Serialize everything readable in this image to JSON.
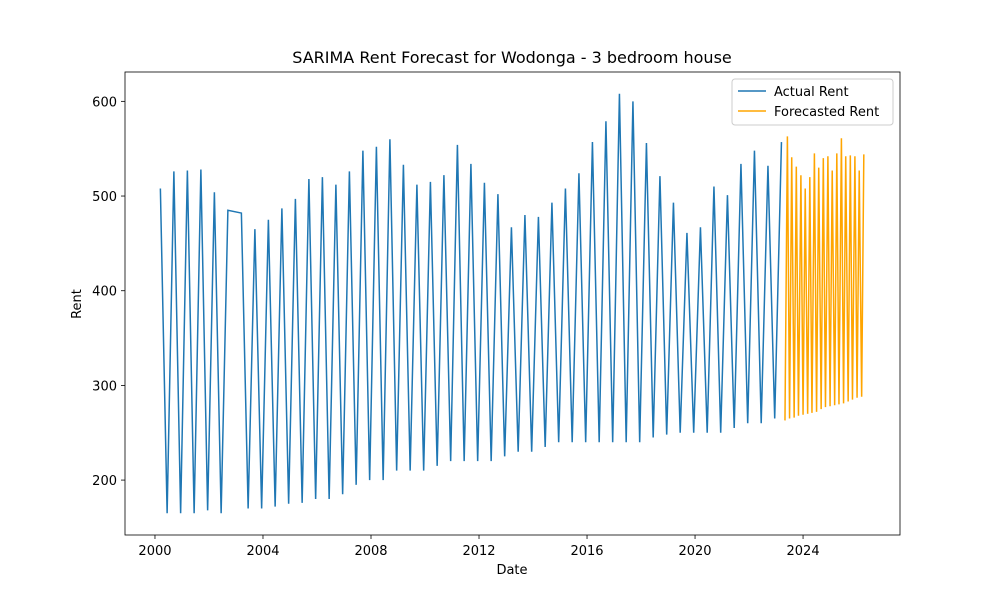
{
  "chart_data": {
    "type": "line",
    "title": "SARIMA Rent Forecast for Wodonga - 3 bedroom house",
    "x_label": "Date",
    "y_label": "Rent",
    "xlim": [
      1998.89,
      2027.59
    ],
    "xticks": [
      2000,
      2004,
      2008,
      2012,
      2016,
      2020,
      2024
    ],
    "ylim": [
      142,
      631
    ],
    "yticks": [
      200,
      300,
      400,
      500,
      600
    ],
    "legend": "upper right",
    "series": [
      {
        "name": "Actual Rent",
        "color": "#1f77b4",
        "x": [
          2000.2,
          2000.45,
          2000.7,
          2000.95,
          2001.2,
          2001.45,
          2001.7,
          2001.95,
          2002.2,
          2002.45,
          2002.7,
          2003.2,
          2003.45,
          2003.7,
          2003.95,
          2004.2,
          2004.45,
          2004.7,
          2004.95,
          2005.2,
          2005.45,
          2005.7,
          2005.95,
          2006.2,
          2006.45,
          2006.7,
          2006.95,
          2007.2,
          2007.45,
          2007.7,
          2007.95,
          2008.2,
          2008.45,
          2008.7,
          2008.95,
          2009.2,
          2009.45,
          2009.7,
          2009.95,
          2010.2,
          2010.45,
          2010.7,
          2010.95,
          2011.2,
          2011.45,
          2011.7,
          2011.95,
          2012.2,
          2012.45,
          2012.7,
          2012.95,
          2013.2,
          2013.45,
          2013.7,
          2013.95,
          2014.2,
          2014.45,
          2014.7,
          2014.95,
          2015.2,
          2015.45,
          2015.7,
          2015.95,
          2016.2,
          2016.45,
          2016.7,
          2016.95,
          2017.2,
          2017.45,
          2017.7,
          2017.95,
          2018.2,
          2018.45,
          2018.7,
          2018.95,
          2019.2,
          2019.45,
          2019.7,
          2019.95,
          2020.2,
          2020.45,
          2020.7,
          2020.95,
          2021.2,
          2021.45,
          2021.7,
          2021.95,
          2022.2,
          2022.45,
          2022.7,
          2022.95,
          2023.2
        ],
        "values": [
          508,
          165,
          526,
          165,
          527,
          165,
          528,
          168,
          504,
          165,
          485,
          482,
          170,
          465,
          170,
          475,
          172,
          487,
          175,
          497,
          176,
          518,
          180,
          520,
          180,
          512,
          185,
          526,
          195,
          548,
          200,
          552,
          200,
          560,
          210,
          533,
          210,
          512,
          210,
          515,
          215,
          522,
          220,
          554,
          220,
          534,
          220,
          514,
          220,
          502,
          225,
          467,
          230,
          480,
          230,
          478,
          235,
          493,
          240,
          508,
          240,
          524,
          240,
          557,
          240,
          579,
          240,
          608,
          240,
          600,
          240,
          556,
          245,
          521,
          248,
          493,
          250,
          461,
          250,
          467,
          250,
          510,
          250,
          501,
          255,
          534,
          260,
          548,
          260,
          532,
          265,
          557
        ]
      },
      {
        "name": "Forecasted Rent",
        "color": "#ffa500",
        "x": [
          2023.33,
          2023.42,
          2023.5,
          2023.58,
          2023.67,
          2023.75,
          2023.83,
          2023.92,
          2024.0,
          2024.08,
          2024.17,
          2024.25,
          2024.33,
          2024.42,
          2024.5,
          2024.58,
          2024.67,
          2024.75,
          2024.83,
          2024.92,
          2025.0,
          2025.08,
          2025.17,
          2025.25,
          2025.33,
          2025.42,
          2025.5,
          2025.58,
          2025.67,
          2025.75,
          2025.83,
          2025.92,
          2026.0,
          2026.08,
          2026.17,
          2026.25
        ],
        "values": [
          263,
          563,
          265,
          541,
          266,
          531,
          268,
          522,
          269,
          508,
          270,
          520,
          271,
          545,
          272,
          530,
          275,
          540,
          277,
          542,
          278,
          527,
          279,
          545,
          280,
          561,
          281,
          542,
          283,
          543,
          285,
          542,
          287,
          527,
          288,
          544
        ]
      }
    ]
  }
}
